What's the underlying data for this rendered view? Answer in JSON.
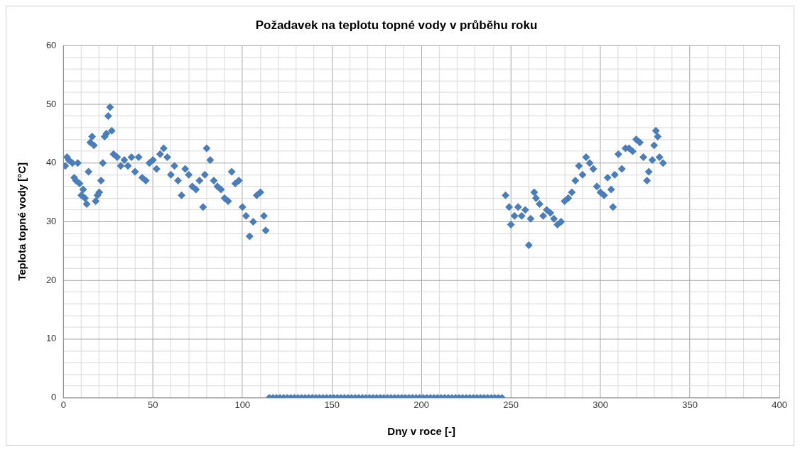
{
  "chart_data": {
    "type": "scatter",
    "title": "Požadavek na teplotu topné vody v průběhu roku",
    "xlabel": "Dny v roce [-]",
    "ylabel": "Teplota topné vody [°C]",
    "x": [
      1,
      2,
      3,
      5,
      6,
      7,
      8,
      9,
      10,
      11,
      12,
      13,
      14,
      15,
      16,
      17,
      18,
      19,
      20,
      21,
      22,
      23,
      24,
      25,
      26,
      27,
      28,
      30,
      32,
      34,
      36,
      38,
      40,
      42,
      44,
      46,
      48,
      50,
      52,
      54,
      56,
      58,
      60,
      62,
      64,
      66,
      68,
      70,
      72,
      74,
      76,
      78,
      79,
      80,
      82,
      84,
      86,
      88,
      90,
      92,
      94,
      96,
      98,
      100,
      102,
      104,
      106,
      108,
      110,
      112,
      113,
      115,
      117,
      119,
      121,
      123,
      125,
      127,
      129,
      131,
      133,
      135,
      137,
      139,
      141,
      143,
      145,
      147,
      149,
      151,
      153,
      155,
      157,
      159,
      161,
      163,
      165,
      167,
      169,
      171,
      173,
      175,
      177,
      179,
      181,
      183,
      185,
      187,
      189,
      191,
      193,
      195,
      197,
      199,
      201,
      203,
      205,
      207,
      209,
      211,
      213,
      215,
      217,
      219,
      221,
      223,
      225,
      227,
      229,
      231,
      233,
      235,
      237,
      239,
      241,
      243,
      245,
      247,
      249,
      250,
      252,
      254,
      256,
      258,
      260,
      261,
      263,
      264,
      266,
      268,
      270,
      272,
      274,
      276,
      278,
      280,
      282,
      284,
      286,
      288,
      290,
      292,
      294,
      296,
      298,
      300,
      302,
      304,
      306,
      307,
      308,
      310,
      312,
      314,
      316,
      318,
      320,
      322,
      324,
      326,
      327,
      329,
      330,
      331,
      332,
      333,
      335
    ],
    "series": [
      {
        "color": "#4a7ebb",
        "values": [
          39.5,
          41,
          40.5,
          40,
          37.5,
          37,
          40,
          36.5,
          34.5,
          35.5,
          34,
          33,
          38.5,
          43.5,
          44.5,
          43,
          33.5,
          34.5,
          35,
          37,
          40,
          44.5,
          45,
          48,
          49.5,
          45.5,
          41.5,
          41,
          39.5,
          40.5,
          39.5,
          41,
          38.5,
          41,
          37.5,
          37,
          40,
          40.5,
          39,
          41.5,
          42.5,
          41,
          38,
          39.5,
          37,
          34.5,
          39,
          38,
          36,
          35.5,
          37,
          32.5,
          38,
          42.5,
          40.5,
          37,
          36,
          35.5,
          34,
          33.5,
          38.5,
          36.5,
          37,
          32.5,
          31,
          27.5,
          30,
          34.5,
          35,
          31,
          28.5,
          0,
          0,
          0,
          0,
          0,
          0,
          0,
          0,
          0,
          0,
          0,
          0,
          0,
          0,
          0,
          0,
          0,
          0,
          0,
          0,
          0,
          0,
          0,
          0,
          0,
          0,
          0,
          0,
          0,
          0,
          0,
          0,
          0,
          0,
          0,
          0,
          0,
          0,
          0,
          0,
          0,
          0,
          0,
          0,
          0,
          0,
          0,
          0,
          0,
          0,
          0,
          0,
          0,
          0,
          0,
          0,
          0,
          0,
          0,
          0,
          0,
          0,
          0,
          0,
          0,
          0,
          34.5,
          32.5,
          29.5,
          31,
          32.5,
          31,
          32,
          26,
          30.5,
          35,
          34,
          33,
          31,
          32,
          31.5,
          30.5,
          29.5,
          30,
          33.5,
          34,
          35,
          37,
          39.5,
          38,
          41,
          40,
          39,
          36,
          35,
          34.5,
          37.5,
          35.5,
          32.5,
          38,
          41.5,
          39,
          42.5,
          42.5,
          42,
          44,
          43.5,
          41,
          37,
          38.5,
          40.5,
          43,
          45.5,
          44.5,
          41,
          40
        ]
      }
    ],
    "xlim": [
      0,
      400
    ],
    "xticks": [
      0,
      {
        "value": 10,
        "label": null
      },
      {
        "value": 20,
        "label": null
      },
      {
        "value": 30,
        "label": null
      },
      {
        "value": 40,
        "label": null
      },
      50,
      {
        "value": 60,
        "label": null
      },
      {
        "value": 70,
        "label": null
      },
      {
        "value": 80,
        "label": null
      },
      {
        "value": 90,
        "label": null
      },
      100,
      {
        "value": 110,
        "label": null
      },
      {
        "value": 120,
        "label": null
      },
      {
        "value": 130,
        "label": null
      },
      {
        "value": 140,
        "label": null
      },
      150,
      {
        "value": 160,
        "label": null
      },
      {
        "value": 170,
        "label": null
      },
      {
        "value": 180,
        "label": null
      },
      {
        "value": 190,
        "label": null
      },
      200,
      {
        "value": 210,
        "label": null
      },
      {
        "value": 220,
        "label": null
      },
      {
        "value": 230,
        "label": null
      },
      {
        "value": 240,
        "label": null
      },
      250,
      {
        "value": 260,
        "label": null
      },
      {
        "value": 270,
        "label": null
      },
      {
        "value": 280,
        "label": null
      },
      {
        "value": 290,
        "label": null
      },
      300,
      {
        "value": 310,
        "label": null
      },
      {
        "value": 320,
        "label": null
      },
      {
        "value": 330,
        "label": null
      },
      {
        "value": 340,
        "label": null
      },
      350,
      {
        "value": 360,
        "label": null
      },
      {
        "value": 370,
        "label": null
      },
      {
        "value": 380,
        "label": null
      },
      {
        "value": 390,
        "label": null
      },
      400
    ],
    "ylim": [
      0,
      60
    ],
    "yticks": [
      0,
      {
        "value": 2,
        "label": null
      },
      {
        "value": 4,
        "label": null
      },
      {
        "value": 6,
        "label": null
      },
      {
        "value": 8,
        "label": null
      },
      10,
      {
        "value": 12,
        "label": null
      },
      {
        "value": 14,
        "label": null
      },
      {
        "value": 16,
        "label": null
      },
      {
        "value": 18,
        "label": null
      },
      20,
      {
        "value": 22,
        "label": null
      },
      {
        "value": 24,
        "label": null
      },
      {
        "value": 26,
        "label": null
      },
      {
        "value": 28,
        "label": null
      },
      30,
      {
        "value": 32,
        "label": null
      },
      {
        "value": 34,
        "label": null
      },
      {
        "value": 36,
        "label": null
      },
      {
        "value": 38,
        "label": null
      },
      40,
      {
        "value": 42,
        "label": null
      },
      {
        "value": 44,
        "label": null
      },
      {
        "value": 46,
        "label": null
      },
      {
        "value": 48,
        "label": null
      },
      50,
      {
        "value": 52,
        "label": null
      },
      {
        "value": 54,
        "label": null
      },
      {
        "value": 56,
        "label": null
      },
      {
        "value": 58,
        "label": null
      },
      60
    ],
    "grid": true,
    "marker": "diamond",
    "legend": false
  }
}
